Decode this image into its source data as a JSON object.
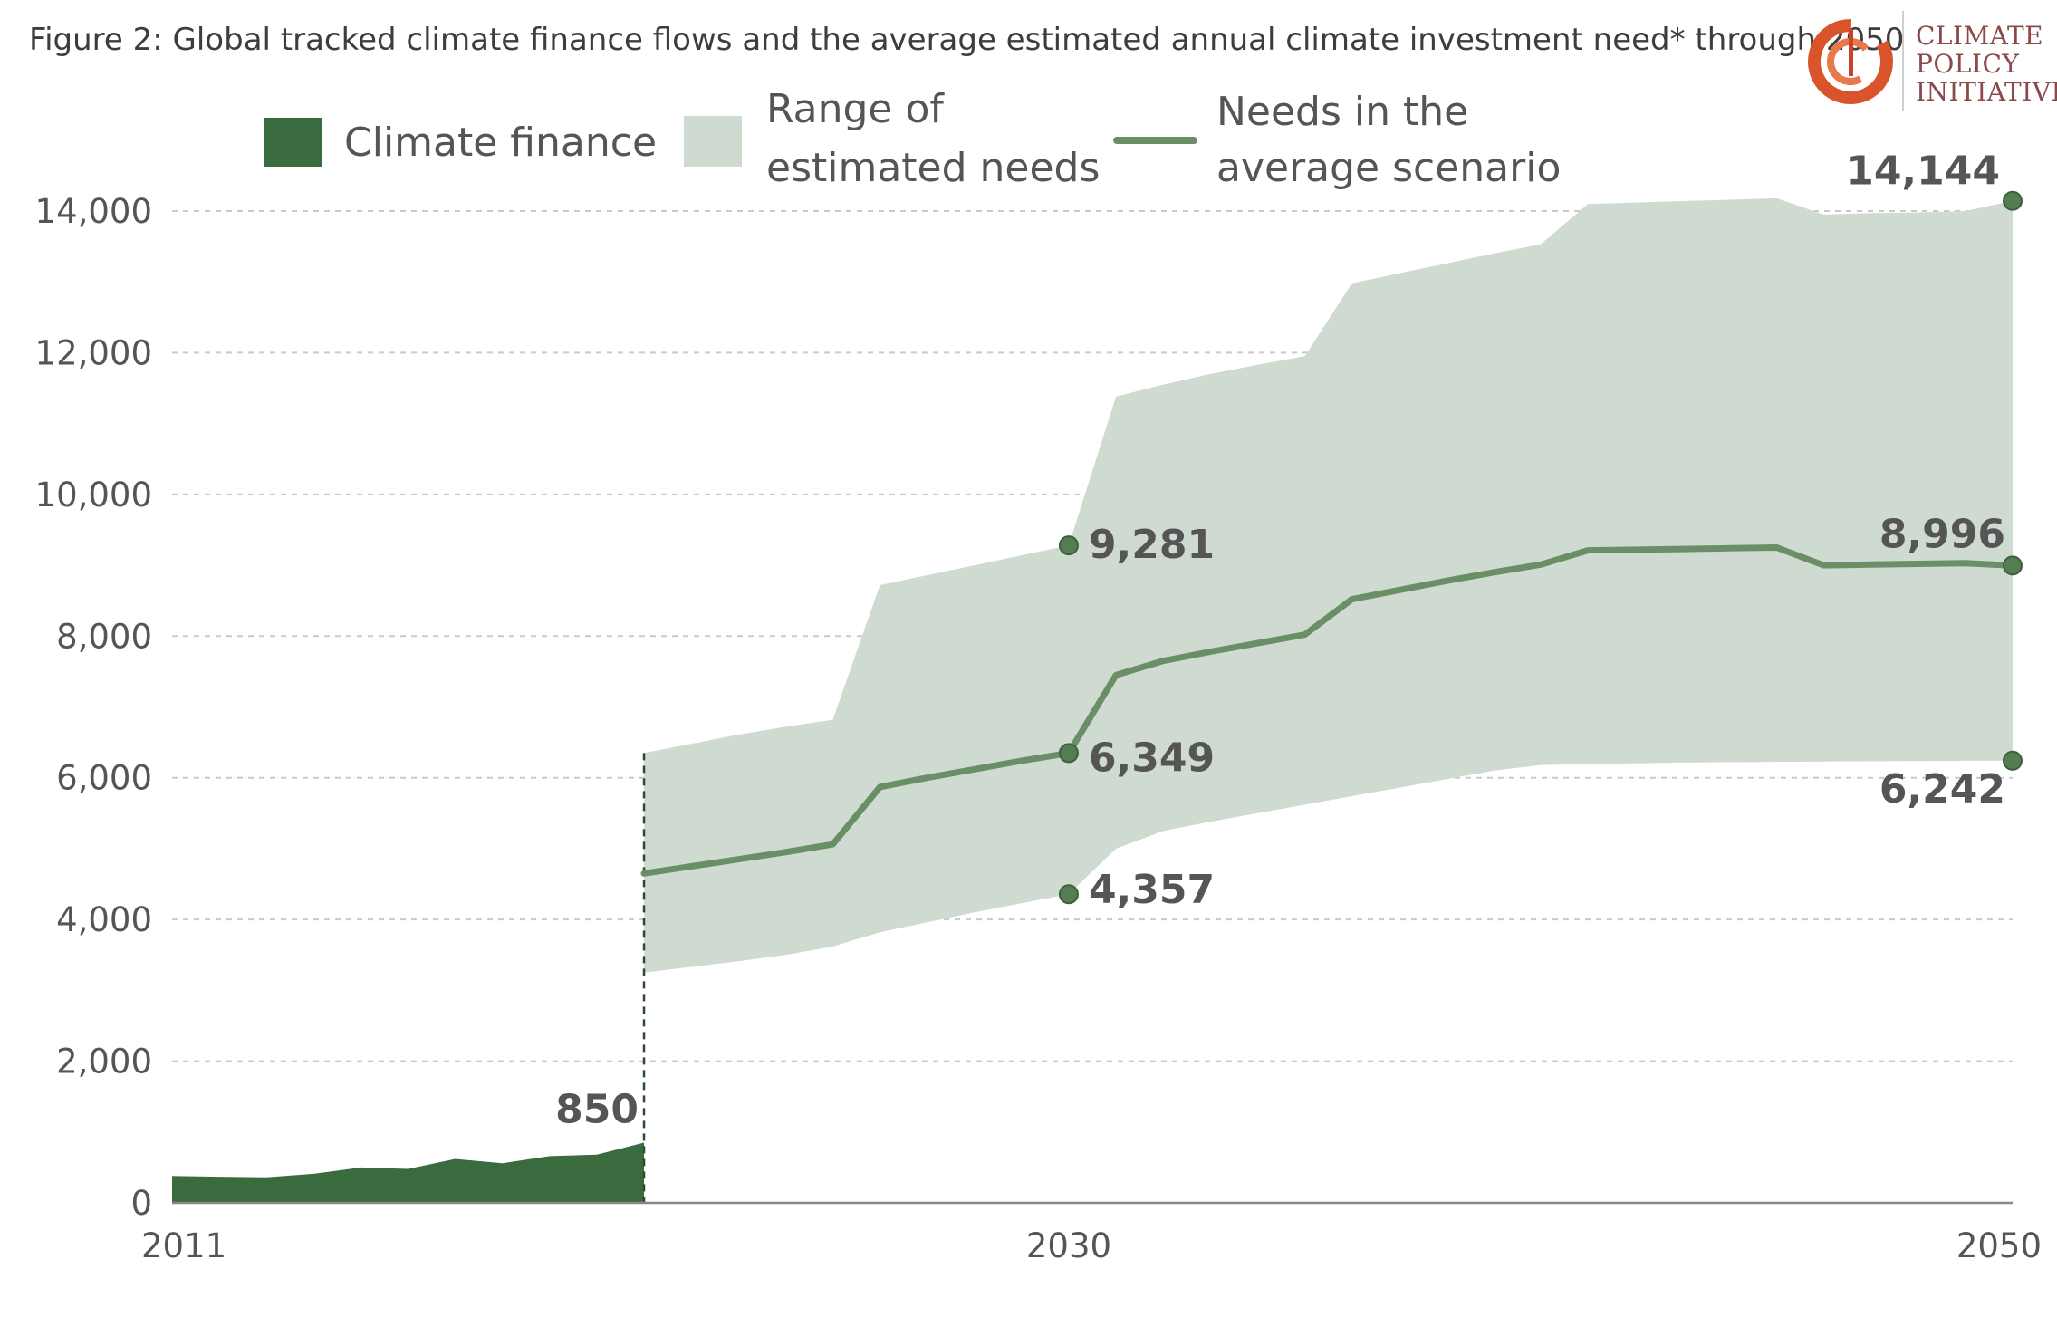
{
  "title": "Figure 2: Global tracked climate finance flows and the average estimated annual climate investment need* through 2050",
  "logo": {
    "lines": [
      "CLIMATE",
      "POLICY",
      "INITIATIVE"
    ]
  },
  "colors": {
    "finance": "#3a6b3e",
    "range": "#cfdbd0",
    "line": "#6a8f67",
    "dot": "#547d53",
    "grid": "#c9c9c9",
    "axis": "#888888",
    "text": "#555555"
  },
  "chart_data": {
    "type": "area",
    "xlim": [
      2011,
      2050
    ],
    "ylim": [
      0,
      14000
    ],
    "x_ticks": [
      2011,
      2030,
      2050
    ],
    "y_ticks": [
      0,
      2000,
      4000,
      6000,
      8000,
      10000,
      12000,
      14000
    ],
    "y_tick_labels": [
      "0",
      "2,000",
      "4,000",
      "6,000",
      "8,000",
      "10,000",
      "12,000",
      "14,000"
    ],
    "x_tick_labels": [
      "2011",
      "2030",
      "2050"
    ],
    "grid": "horizontal dashed",
    "legend": {
      "placement": "top",
      "items": [
        {
          "key": "finance",
          "lines": [
            "Climate finance"
          ]
        },
        {
          "key": "range",
          "lines": [
            "Range of",
            "estimated needs"
          ]
        },
        {
          "key": "line",
          "lines": [
            "Needs in the",
            "average scenario"
          ]
        }
      ]
    },
    "series": [
      {
        "key": "finance",
        "kind": "area",
        "x": [
          2011,
          2012,
          2013,
          2014,
          2015,
          2016,
          2017,
          2018,
          2019,
          2020,
          2021
        ],
        "y": [
          380,
          370,
          360,
          410,
          500,
          480,
          620,
          560,
          660,
          680,
          850
        ]
      },
      {
        "key": "range",
        "kind": "band",
        "x": [
          2021,
          2022,
          2023,
          2024,
          2025,
          2026,
          2027,
          2028,
          2029,
          2030,
          2031,
          2032,
          2033,
          2034,
          2035,
          2036,
          2037,
          2038,
          2039,
          2040,
          2041,
          2042,
          2043,
          2044,
          2045,
          2046,
          2047,
          2048,
          2049,
          2050
        ],
        "upper": [
          6350,
          6480,
          6610,
          6720,
          6820,
          8720,
          8860,
          9000,
          9140,
          9281,
          11380,
          11550,
          11700,
          11830,
          11950,
          12980,
          13120,
          13260,
          13400,
          13530,
          14100,
          14120,
          14140,
          14160,
          14180,
          13950,
          13970,
          13980,
          14000,
          14144
        ],
        "lower": [
          3250,
          3330,
          3410,
          3500,
          3620,
          3820,
          3960,
          4100,
          4230,
          4357,
          5000,
          5250,
          5380,
          5500,
          5620,
          5740,
          5860,
          5980,
          6100,
          6180,
          6195,
          6205,
          6215,
          6220,
          6225,
          6230,
          6234,
          6237,
          6240,
          6242
        ]
      },
      {
        "key": "line",
        "kind": "line",
        "x": [
          2021,
          2022,
          2023,
          2024,
          2025,
          2026,
          2027,
          2028,
          2029,
          2030,
          2031,
          2032,
          2033,
          2034,
          2035,
          2036,
          2037,
          2038,
          2039,
          2040,
          2041,
          2042,
          2043,
          2044,
          2045,
          2046,
          2047,
          2048,
          2049,
          2050
        ],
        "y": [
          4650,
          4750,
          4850,
          4950,
          5060,
          5870,
          6000,
          6120,
          6240,
          6349,
          7450,
          7650,
          7780,
          7900,
          8020,
          8520,
          8650,
          8780,
          8900,
          9010,
          9210,
          9220,
          9230,
          9240,
          9250,
          9000,
          9010,
          9020,
          9030,
          8996
        ]
      }
    ],
    "annotations": [
      {
        "x": 2021,
        "y": 850,
        "text": "850",
        "dot": false,
        "anchor": "end",
        "dx": -6,
        "dy": -22
      },
      {
        "x": 2030,
        "y": 9281,
        "text": "9,281",
        "dot": true,
        "anchor": "start",
        "dx": 22,
        "dy": 14
      },
      {
        "x": 2030,
        "y": 6349,
        "text": "6,349",
        "dot": true,
        "anchor": "start",
        "dx": 22,
        "dy": 20
      },
      {
        "x": 2030,
        "y": 4357,
        "text": "4,357",
        "dot": true,
        "anchor": "start",
        "dx": 22,
        "dy": 10
      },
      {
        "x": 2050,
        "y": 14144,
        "text": "14,144",
        "dot": true,
        "anchor": "end",
        "dx": -14,
        "dy": -18
      },
      {
        "x": 2050,
        "y": 8996,
        "text": "8,996",
        "dot": true,
        "anchor": "end",
        "dx": -8,
        "dy": -20
      },
      {
        "x": 2050,
        "y": 6242,
        "text": "6,242",
        "dot": true,
        "anchor": "end",
        "dx": -8,
        "dy": 46
      }
    ],
    "divider_year": 2021
  }
}
